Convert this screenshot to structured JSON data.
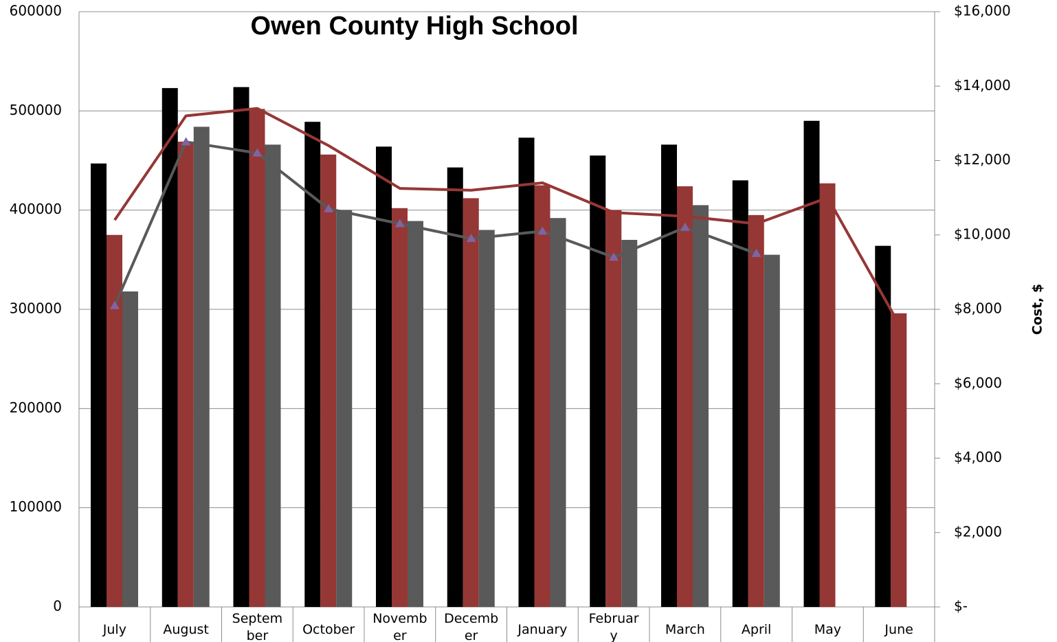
{
  "chart_data": {
    "type": "bar",
    "title": "Owen County High School",
    "y2label": "Cost, $",
    "categories": [
      "July",
      "August",
      "September",
      "October",
      "November",
      "December",
      "January",
      "February",
      "March",
      "April",
      "May",
      "June"
    ],
    "series": [
      {
        "color": "#000000",
        "values": [
          447000,
          523000,
          524000,
          489000,
          464000,
          443000,
          473000,
          455000,
          466000,
          430000,
          490000,
          364000
        ]
      },
      {
        "color": "#953735",
        "values": [
          375000,
          469000,
          502000,
          456000,
          402000,
          412000,
          425000,
          400000,
          424000,
          395000,
          427000,
          296000
        ]
      },
      {
        "color": "#595959",
        "values": [
          318000,
          484000,
          466000,
          400000,
          389000,
          380000,
          392000,
          370000,
          405000,
          355000,
          null,
          null
        ]
      },
      {
        "type": "line",
        "axis": "y2",
        "color": "#953735",
        "values": [
          10400,
          13200,
          13400,
          12400,
          11250,
          11200,
          11400,
          10600,
          10500,
          10300,
          11000,
          7600
        ]
      },
      {
        "type": "line",
        "axis": "y2",
        "color": "#595959",
        "marker_color": "#8064a2",
        "values": [
          8100,
          12500,
          12200,
          10700,
          10300,
          9900,
          10100,
          9400,
          10200,
          9500,
          null,
          null
        ]
      }
    ],
    "ylim": [
      0,
      600000
    ],
    "yticks": [
      0,
      100000,
      200000,
      300000,
      400000,
      500000,
      600000
    ],
    "y2lim": [
      0,
      16000
    ],
    "y2ticks": [
      {
        "value": 0,
        "label": "$-"
      },
      {
        "value": 2000,
        "label": "$2,000"
      },
      {
        "value": 4000,
        "label": "$4,000"
      },
      {
        "value": 6000,
        "label": "$6,000"
      },
      {
        "value": 8000,
        "label": "$8,000"
      },
      {
        "value": 10000,
        "label": "$10,000"
      },
      {
        "value": 12000,
        "label": "$12,000"
      },
      {
        "value": 14000,
        "label": "$14,000"
      },
      {
        "value": 16000,
        "label": "$16,000"
      }
    ],
    "grid": true
  }
}
